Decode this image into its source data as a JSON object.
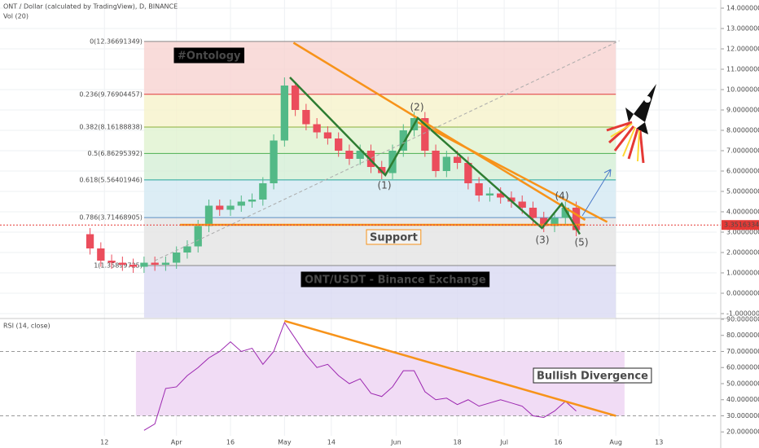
{
  "header": {
    "title": "ONT / Dollar (calculated by TradingView), D, BINANCE",
    "volume_label": "Vol (20)",
    "rsi_label": "RSI (14, close)"
  },
  "chart_data": [
    {
      "type": "candlestick",
      "x": [
        -4,
        -1,
        2,
        5,
        8,
        11,
        14,
        17,
        20,
        23,
        26,
        29,
        32,
        35,
        38,
        41,
        44,
        47,
        50,
        53,
        56,
        59,
        62,
        65,
        68,
        71,
        74,
        77,
        80,
        83,
        86,
        89,
        92,
        95,
        98,
        101,
        104,
        107,
        110,
        113,
        116,
        119,
        122,
        125,
        128,
        131
      ],
      "open": [
        2.9,
        2.2,
        1.6,
        1.5,
        1.4,
        1.3,
        1.5,
        1.4,
        1.5,
        2.0,
        2.3,
        3.3,
        4.3,
        4.1,
        4.3,
        4.5,
        4.6,
        5.4,
        7.5,
        10.2,
        9.0,
        8.3,
        7.9,
        7.6,
        7.0,
        6.6,
        7.0,
        6.2,
        5.9,
        7.0,
        8.0,
        8.6,
        7.0,
        6.0,
        6.7,
        6.4,
        5.4,
        4.8,
        4.9,
        4.7,
        4.5,
        4.2,
        3.7,
        3.3,
        3.7,
        4.2
      ],
      "high": [
        3.2,
        2.5,
        1.9,
        1.8,
        1.7,
        1.8,
        1.8,
        1.8,
        2.3,
        2.6,
        3.6,
        4.6,
        4.6,
        4.6,
        4.8,
        4.9,
        5.7,
        7.8,
        10.6,
        10.3,
        9.3,
        8.6,
        8.2,
        7.9,
        7.3,
        7.3,
        7.3,
        6.5,
        7.3,
        8.3,
        8.9,
        8.9,
        7.3,
        7.0,
        7.0,
        6.7,
        5.7,
        5.2,
        5.2,
        5.0,
        4.8,
        4.5,
        4.0,
        4.0,
        4.5,
        4.5
      ],
      "low": [
        1.9,
        1.3,
        1.2,
        1.1,
        1.0,
        1.0,
        1.1,
        1.1,
        1.2,
        1.7,
        2.0,
        3.0,
        3.8,
        3.8,
        4.0,
        4.2,
        4.3,
        5.1,
        7.2,
        8.7,
        8.0,
        7.6,
        7.3,
        6.7,
        6.3,
        6.3,
        5.9,
        5.6,
        5.6,
        6.7,
        7.7,
        6.7,
        5.7,
        5.7,
        6.1,
        5.1,
        4.5,
        4.5,
        4.4,
        4.2,
        3.9,
        3.4,
        3.0,
        3.0,
        3.4,
        2.8
      ],
      "close": [
        2.2,
        1.6,
        1.5,
        1.4,
        1.3,
        1.5,
        1.4,
        1.5,
        2.0,
        2.3,
        3.3,
        4.3,
        4.1,
        4.3,
        4.5,
        4.6,
        5.4,
        7.5,
        10.2,
        9.0,
        8.3,
        7.9,
        7.6,
        7.0,
        6.6,
        7.0,
        6.2,
        5.9,
        7.0,
        8.0,
        8.6,
        7.0,
        6.0,
        6.7,
        6.4,
        5.4,
        4.8,
        4.9,
        4.7,
        4.5,
        4.2,
        3.7,
        3.3,
        3.7,
        4.2,
        3.1
      ],
      "up_color": "#53b987",
      "down_color": "#eb4d5c",
      "xlim": [
        -29,
        170
      ],
      "ylim": [
        -1.2,
        14.4
      ],
      "xticks": [
        {
          "value": 0,
          "label": "12"
        },
        {
          "value": 20,
          "label": "Apr"
        },
        {
          "value": 35,
          "label": "16"
        },
        {
          "value": 50,
          "label": "May"
        },
        {
          "value": 63,
          "label": "14"
        },
        {
          "value": 81,
          "label": "Jun"
        },
        {
          "value": 98,
          "label": "18"
        },
        {
          "value": 111,
          "label": "Jul"
        },
        {
          "value": 126,
          "label": "16"
        },
        {
          "value": 142,
          "label": "Aug"
        },
        {
          "value": 154,
          "label": "13"
        }
      ],
      "yticks": [
        {
          "value": 14,
          "label": "14.00000000"
        },
        {
          "value": 13,
          "label": "13.00000000"
        },
        {
          "value": 12,
          "label": "12.00000000"
        },
        {
          "value": 11,
          "label": "11.00000000"
        },
        {
          "value": 10,
          "label": "10.00000000"
        },
        {
          "value": 9,
          "label": "9.00000000"
        },
        {
          "value": 8,
          "label": "8.00000000"
        },
        {
          "value": 7,
          "label": "7.00000000"
        },
        {
          "value": 6,
          "label": "6.00000000"
        },
        {
          "value": 5,
          "label": "5.00000000"
        },
        {
          "value": 4,
          "label": "4.00000000"
        },
        {
          "value": 3,
          "label": "3.00000000"
        },
        {
          "value": 2,
          "label": "2.00000000"
        },
        {
          "value": 1,
          "label": "1.00000000"
        },
        {
          "value": 0,
          "label": "0.00000000"
        },
        {
          "value": -1,
          "label": "-1.00000000"
        }
      ],
      "last_price": {
        "value": 3.35163346,
        "label": "3.35163346"
      },
      "fib_range": [
        11,
        142
      ],
      "fib_levels": [
        {
          "value": 12.36691349,
          "label": "0(12.36691349)",
          "color": "#888888",
          "fill": "#f7d3d1"
        },
        {
          "value": 9.76904457,
          "label": "0.236(9.76904457)",
          "color": "#e0363c",
          "fill": "#f6f3cb"
        },
        {
          "value": 8.16188838,
          "label": "0.382(8.16188838)",
          "color": "#8bb03c",
          "fill": "#e0f2cf"
        },
        {
          "value": 6.86295392,
          "label": "0.5(6.86295392)",
          "color": "#4caf50",
          "fill": "#d5efd6"
        },
        {
          "value": 5.56401946,
          "label": "0.618(5.56401946)",
          "color": "#26a69a",
          "fill": "#d3e8f3"
        },
        {
          "value": 3.71468905,
          "label": "0.786(3.71468905)",
          "color": "#5b8fc4",
          "fill": "#e3e3e3"
        },
        {
          "value": 1.35899725,
          "label": "1(1.35899725)",
          "color": "#888888",
          "fill": "#d9d9f3"
        }
      ],
      "trendlines": [
        {
          "color": "#f7931a",
          "points": [
            [
              52.5,
              12.3
            ],
            [
              133.5,
              3.6
            ]
          ]
        },
        {
          "color": "#f7931a",
          "points": [
            [
              87,
              8.4
            ],
            [
              139.6,
              3.5
            ]
          ]
        },
        {
          "color": "#f7931a",
          "points": [
            [
              21,
              3.36
            ],
            [
              133.5,
              3.36
            ]
          ]
        },
        {
          "color": "#2e7d32",
          "points": [
            [
              51.5,
              10.6
            ],
            [
              78,
              5.8
            ],
            [
              87,
              8.6
            ],
            [
              121.5,
              3.2
            ],
            [
              127,
              4.4
            ],
            [
              132,
              2.9
            ]
          ]
        },
        {
          "color": "#aaaaaa",
          "points": [
            [
              14,
              1.6
            ],
            [
              143,
              12.4
            ]
          ]
        }
      ],
      "annotations": [
        "#Ontology",
        "Support",
        "ONT/USDT - Binance Exchange"
      ],
      "wave_labels": [
        "(1)",
        "(2)",
        "(3)",
        "(4)",
        "(5)"
      ]
    },
    {
      "type": "line",
      "x": [
        11,
        14,
        17,
        20,
        23,
        26,
        29,
        32,
        35,
        38,
        41,
        44,
        47,
        50,
        53,
        56,
        59,
        62,
        65,
        68,
        71,
        74,
        77,
        80,
        83,
        86,
        89,
        92,
        95,
        98,
        101,
        104,
        107,
        110,
        113,
        116,
        119,
        122,
        125,
        128,
        131
      ],
      "values": [
        21,
        25,
        47,
        48,
        55,
        60,
        66,
        70,
        76,
        70,
        72,
        62,
        70,
        88,
        78,
        68,
        60,
        62,
        55,
        50,
        53,
        44,
        42,
        48,
        58,
        58,
        45,
        40,
        41,
        37,
        40,
        36,
        38,
        40,
        38,
        36,
        30,
        29,
        33,
        39,
        33
      ],
      "color": "#9c27b0",
      "band": [
        30,
        70
      ],
      "band_color": "#f1dcf5",
      "xlim": [
        -29,
        170
      ],
      "ylim": [
        10,
        91
      ],
      "yticks": [
        {
          "value": 90,
          "label": "90.000000"
        },
        {
          "value": 80,
          "label": "80.000000"
        },
        {
          "value": 70,
          "label": "70.000000"
        },
        {
          "value": 60,
          "label": "60.000000"
        },
        {
          "value": 50,
          "label": "50.000000"
        },
        {
          "value": 40,
          "label": "40.000000"
        },
        {
          "value": 30,
          "label": "30.000000"
        },
        {
          "value": 20,
          "label": "20.000000"
        }
      ],
      "trendlines": [
        {
          "color": "#f7931a",
          "points": [
            [
              50,
              89
            ],
            [
              142,
              30
            ]
          ]
        }
      ],
      "annotations": [
        "Bullish Divergence"
      ]
    }
  ]
}
